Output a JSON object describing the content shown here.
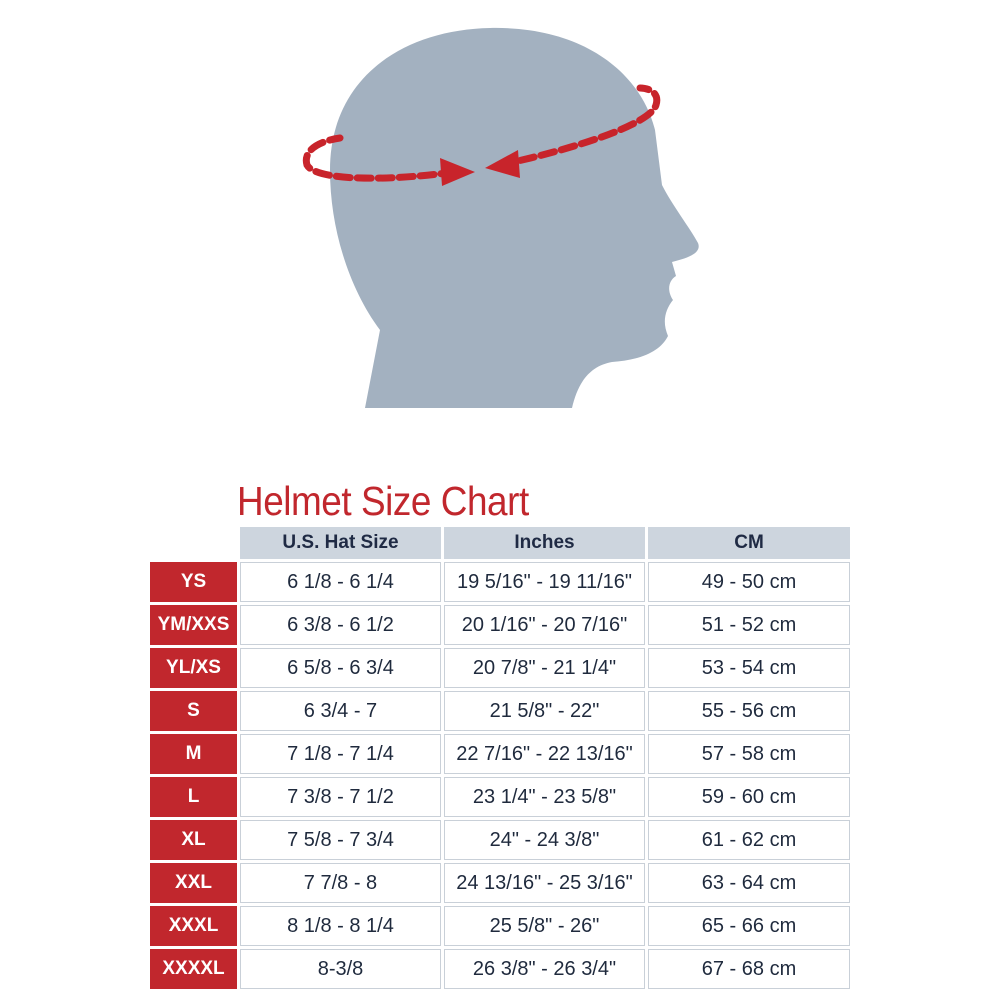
{
  "illustration": {
    "icon": "head-circumference-measure-icon",
    "head_color": "#a3b1c0",
    "tape_color": "#c8242b"
  },
  "title": "Helmet Size Chart",
  "colors": {
    "title": "#c1272d",
    "size_label_bg": "#c1272d",
    "header_bg": "#cdd5de"
  },
  "columns": [
    "U.S. Hat Size",
    "Inches",
    "CM"
  ],
  "rows": [
    {
      "size": "YS",
      "hat": "6 1/8 - 6 1/4",
      "inches": "19 5/16\" - 19 11/16\"",
      "cm": "49 - 50 cm"
    },
    {
      "size": "YM/XXS",
      "hat": "6 3/8 - 6 1/2",
      "inches": "20 1/16\" - 20 7/16\"",
      "cm": "51 - 52 cm"
    },
    {
      "size": "YL/XS",
      "hat": "6 5/8 - 6 3/4",
      "inches": "20 7/8\" - 21 1/4\"",
      "cm": "53 - 54 cm"
    },
    {
      "size": "S",
      "hat": "6 3/4 - 7",
      "inches": "21 5/8\" - 22\"",
      "cm": "55 - 56 cm"
    },
    {
      "size": "M",
      "hat": "7 1/8 - 7 1/4",
      "inches": "22 7/16\" - 22 13/16\"",
      "cm": "57 - 58 cm"
    },
    {
      "size": "L",
      "hat": "7 3/8 - 7 1/2",
      "inches": "23 1/4\" - 23 5/8\"",
      "cm": "59 - 60 cm"
    },
    {
      "size": "XL",
      "hat": "7 5/8 - 7 3/4",
      "inches": "24\" - 24 3/8\"",
      "cm": "61 - 62 cm"
    },
    {
      "size": "XXL",
      "hat": "7 7/8 - 8",
      "inches": "24 13/16\" - 25 3/16\"",
      "cm": "63 - 64 cm"
    },
    {
      "size": "XXXL",
      "hat": "8 1/8 - 8 1/4",
      "inches": "25 5/8\" - 26\"",
      "cm": "65 - 66 cm"
    },
    {
      "size": "XXXXL",
      "hat": "8-3/8",
      "inches": "26 3/8\" - 26 3/4\"",
      "cm": "67 - 68 cm"
    }
  ]
}
